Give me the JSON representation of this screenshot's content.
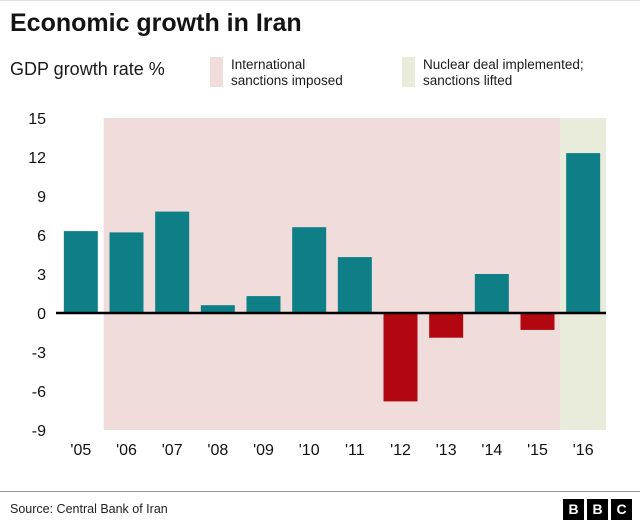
{
  "header": {
    "title": "Economic growth in Iran",
    "subtitle": "GDP growth rate %"
  },
  "legend": [
    {
      "lines": [
        "International",
        "sanctions imposed"
      ],
      "color": "#f1dcdc"
    },
    {
      "lines": [
        "Nuclear deal implemented;",
        "sanctions lifted"
      ],
      "color": "#e9ecda"
    }
  ],
  "chart_data": {
    "type": "bar",
    "title": "Economic growth in Iran",
    "ylabel": "GDP growth rate %",
    "xlabel": "",
    "categories": [
      "'05",
      "'06",
      "'07",
      "'08",
      "'09",
      "'10",
      "'11",
      "'12",
      "'13",
      "'14",
      "'15",
      "'16"
    ],
    "values": [
      6.3,
      6.2,
      7.8,
      0.6,
      1.3,
      6.6,
      4.3,
      -6.8,
      -1.9,
      3.0,
      -1.3,
      12.3
    ],
    "ylim": [
      -9,
      15
    ],
    "yticks": [
      15,
      12,
      9,
      6,
      3,
      0,
      -3,
      -6,
      -9
    ],
    "grid": false,
    "legend_position": "top",
    "positive_color": "#0f7f87",
    "negative_color": "#b20610",
    "bands": [
      {
        "label": "International sanctions imposed",
        "from": "'06",
        "to": "'15",
        "color": "#f1dcdc"
      },
      {
        "label": "Nuclear deal implemented; sanctions lifted",
        "from": "'16",
        "to": "'16",
        "color": "#e9ecda"
      }
    ]
  },
  "footer": {
    "source": "Source: Central Bank of Iran",
    "logo_letters": [
      "B",
      "B",
      "C"
    ]
  }
}
